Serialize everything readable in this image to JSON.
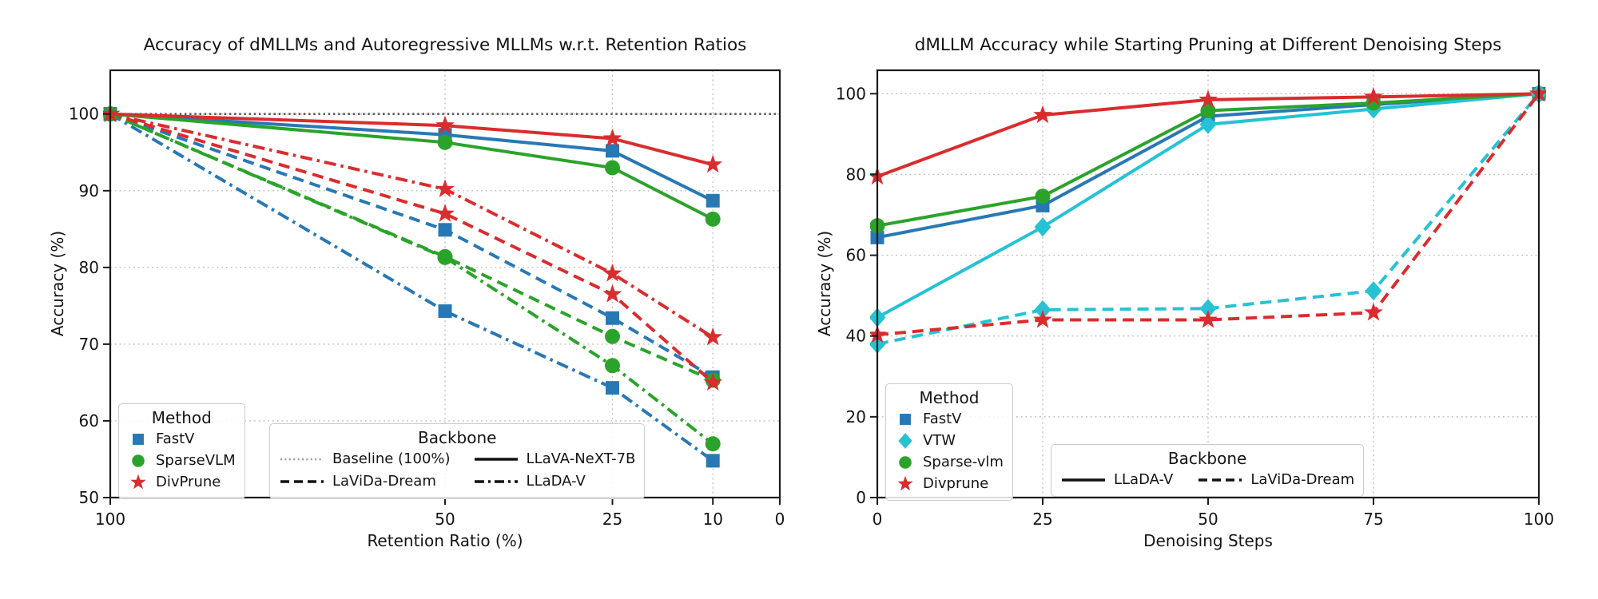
{
  "figure": {
    "background": "#ffffff"
  },
  "colors": {
    "blue": "#2878b5",
    "green": "#2ba32b",
    "red": "#da2c2e",
    "cyan": "#25c2d4",
    "baseline": "#5a5a5a",
    "baseline_legend": "#9a9a9a",
    "black": "#111111",
    "grid": "#bdbdbd",
    "axis": "#1b1b1b",
    "text": "#141414"
  },
  "chart_data": [
    {
      "type": "line",
      "title": "Accuracy of dMLLMs and Autoregressive MLLMs w.r.t. Retention Ratios",
      "xlabel": "Retention Ratio (%)",
      "ylabel": "Accuracy (%)",
      "xlim": [
        100,
        0
      ],
      "ylim": [
        50,
        105.7
      ],
      "x_axis_reversed": true,
      "x_ticks": [
        100,
        50,
        25,
        10,
        0
      ],
      "y_ticks": [
        50,
        60,
        70,
        80,
        90,
        100
      ],
      "grid": true,
      "x": [
        100,
        50,
        25,
        10
      ],
      "series": [
        {
          "name": "Baseline (100%)",
          "method": "Baseline",
          "backbone": "Baseline (100%)",
          "color_key": "baseline",
          "line": "dotted",
          "marker": "none",
          "x": [
            100,
            0
          ],
          "y": [
            100,
            100
          ]
        },
        {
          "name": "FastV LLaDA-V",
          "method": "FastV",
          "backbone": "LLaDA-V",
          "color_key": "blue",
          "line": "dashdot",
          "marker": "square",
          "y": [
            100,
            74.3,
            64.3,
            54.8
          ]
        },
        {
          "name": "SparseVLM LLaDA-V",
          "method": "SparseVLM",
          "backbone": "LLaDA-V",
          "color_key": "green",
          "line": "dashdot",
          "marker": "circle",
          "y": [
            100,
            81.3,
            67.2,
            57.0
          ]
        },
        {
          "name": "DivPrune LLaDA-V",
          "method": "DivPrune",
          "backbone": "LLaDA-V",
          "color_key": "red",
          "line": "dashdot",
          "marker": "star",
          "y": [
            100,
            90.2,
            79.2,
            70.9
          ]
        },
        {
          "name": "FastV LaViDa-Dream",
          "method": "FastV",
          "backbone": "LaViDa-Dream",
          "color_key": "blue",
          "line": "dashed",
          "marker": "square",
          "y": [
            100,
            84.9,
            73.4,
            65.7
          ]
        },
        {
          "name": "SparseVLM LaViDa-Dream",
          "method": "SparseVLM",
          "backbone": "LaViDa-Dream",
          "color_key": "green",
          "line": "dashed",
          "marker": "circle",
          "y": [
            100,
            81.4,
            71.0,
            65.3
          ]
        },
        {
          "name": "DivPrune LaViDa-Dream",
          "method": "DivPrune",
          "backbone": "LaViDa-Dream",
          "color_key": "red",
          "line": "dashed",
          "marker": "star",
          "y": [
            100,
            87.0,
            76.5,
            65.0
          ]
        },
        {
          "name": "FastV LLaVA-NeXT-7B",
          "method": "FastV",
          "backbone": "LLaVA-NeXT-7B",
          "color_key": "blue",
          "line": "solid",
          "marker": "square",
          "y": [
            100,
            97.3,
            95.2,
            88.7
          ]
        },
        {
          "name": "SparseVLM LLaVA-NeXT-7B",
          "method": "SparseVLM",
          "backbone": "LLaVA-NeXT-7B",
          "color_key": "green",
          "line": "solid",
          "marker": "circle",
          "y": [
            100,
            96.3,
            93.0,
            86.3
          ]
        },
        {
          "name": "DivPrune LLaVA-NeXT-7B",
          "method": "DivPrune",
          "backbone": "LLaVA-NeXT-7B",
          "color_key": "red",
          "line": "solid",
          "marker": "star",
          "y": [
            100,
            98.5,
            96.8,
            93.4
          ]
        }
      ],
      "legends": [
        {
          "title": "Method",
          "items": [
            {
              "label": "FastV",
              "marker": "square",
              "color_key": "blue"
            },
            {
              "label": "SparseVLM",
              "marker": "circle",
              "color_key": "green"
            },
            {
              "label": "DivPrune",
              "marker": "star",
              "color_key": "red"
            }
          ]
        },
        {
          "title": "Backbone",
          "items": [
            {
              "label": "Baseline (100%)",
              "line": "dotted",
              "color_key": "baseline_legend"
            },
            {
              "label": "LaViDa-Dream",
              "line": "dashed",
              "color_key": "black"
            },
            {
              "label": "LLaVA-NeXT-7B",
              "line": "solid",
              "color_key": "black"
            },
            {
              "label": "LLaDA-V",
              "line": "dashdot",
              "color_key": "black"
            }
          ]
        }
      ]
    },
    {
      "type": "line",
      "title": "dMLLM Accuracy while Starting Pruning at Different Denoising Steps",
      "xlabel": "Denoising Steps",
      "ylabel": "Accuracy (%)",
      "xlim": [
        0,
        100
      ],
      "ylim": [
        0,
        105.8
      ],
      "x_axis_reversed": false,
      "x_ticks": [
        0,
        25,
        50,
        75,
        100
      ],
      "y_ticks": [
        0,
        20,
        40,
        60,
        80,
        100
      ],
      "grid": true,
      "x": [
        0,
        25,
        50,
        75,
        100
      ],
      "series": [
        {
          "name": "FastV LLaDA-V",
          "method": "FastV",
          "backbone": "LLaDA-V",
          "color_key": "blue",
          "line": "solid",
          "marker": "square",
          "y": [
            64.4,
            72.3,
            94.4,
            97.3,
            100
          ]
        },
        {
          "name": "VTW LLaDA-V",
          "method": "VTW",
          "backbone": "LLaDA-V",
          "color_key": "cyan",
          "line": "solid",
          "marker": "diamond",
          "y": [
            44.6,
            67.0,
            92.4,
            96.2,
            100
          ]
        },
        {
          "name": "Sparse-vlm LLaDA-V",
          "method": "Sparse-vlm",
          "backbone": "LLaDA-V",
          "color_key": "green",
          "line": "solid",
          "marker": "circle",
          "y": [
            67.3,
            74.6,
            95.8,
            97.7,
            100
          ]
        },
        {
          "name": "Divprune LLaDA-V",
          "method": "Divprune",
          "backbone": "LLaDA-V",
          "color_key": "red",
          "line": "solid",
          "marker": "star",
          "y": [
            79.5,
            94.7,
            98.5,
            99.2,
            100
          ]
        },
        {
          "name": "VTW LaViDa-Dream",
          "method": "VTW",
          "backbone": "LaViDa-Dream",
          "color_key": "cyan",
          "line": "dashed",
          "marker": "diamond",
          "y": [
            38.0,
            46.5,
            46.8,
            51.2,
            100
          ]
        },
        {
          "name": "Divprune LaViDa-Dream",
          "method": "Divprune",
          "backbone": "LaViDa-Dream",
          "color_key": "red",
          "line": "dashed",
          "marker": "star",
          "y": [
            40.3,
            44.0,
            44.0,
            45.8,
            100
          ]
        }
      ],
      "legends": [
        {
          "title": "Method",
          "items": [
            {
              "label": "FastV",
              "marker": "square",
              "color_key": "blue"
            },
            {
              "label": "VTW",
              "marker": "diamond",
              "color_key": "cyan"
            },
            {
              "label": "Sparse-vlm",
              "marker": "circle",
              "color_key": "green"
            },
            {
              "label": "Divprune",
              "marker": "star",
              "color_key": "red"
            }
          ]
        },
        {
          "title": "Backbone",
          "items": [
            {
              "label": "LLaDA-V",
              "line": "solid",
              "color_key": "black"
            },
            {
              "label": "LaViDa-Dream",
              "line": "dashed",
              "color_key": "black"
            }
          ]
        }
      ]
    }
  ]
}
